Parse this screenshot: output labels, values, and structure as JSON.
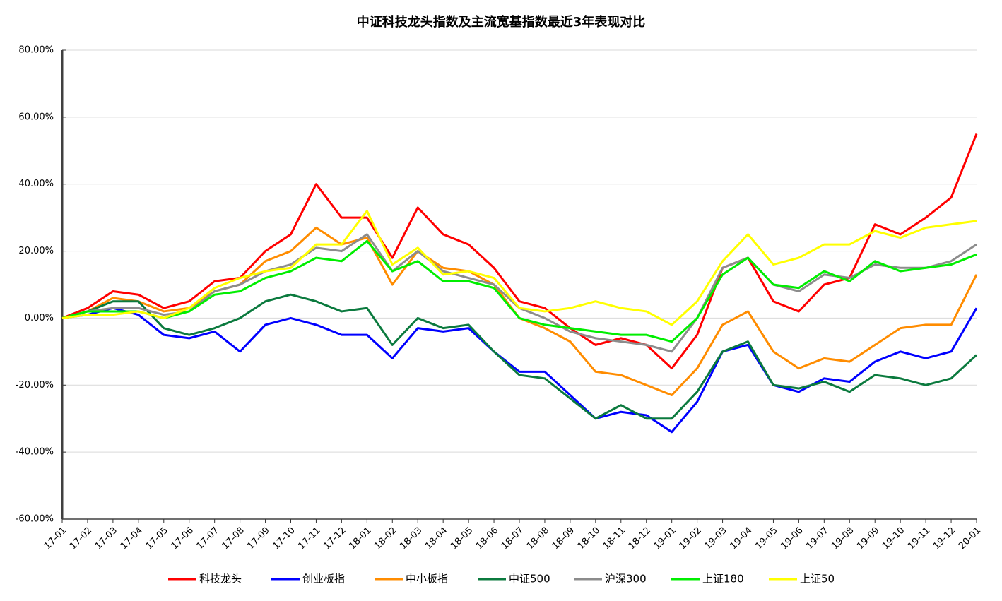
{
  "chart_data": {
    "type": "line",
    "title": "中证科技龙头指数及主流宽基指数最近3年表现对比",
    "categories": [
      "17-01",
      "17-02",
      "17-03",
      "17-04",
      "17-05",
      "17-06",
      "17-07",
      "17-08",
      "17-09",
      "17-10",
      "17-11",
      "17-12",
      "18-01",
      "18-02",
      "18-03",
      "18-04",
      "18-05",
      "18-06",
      "18-07",
      "18-08",
      "18-09",
      "18-10",
      "18-11",
      "18-12",
      "19-01",
      "19-02",
      "19-03",
      "19-04",
      "19-05",
      "19-06",
      "19-07",
      "19-08",
      "19-09",
      "19-10",
      "19-11",
      "19-12",
      "20-01"
    ],
    "series": [
      {
        "name": "科技龙头",
        "color": "#ff0000",
        "values": [
          0,
          3,
          8,
          7,
          3,
          5,
          11,
          12,
          20,
          25,
          40,
          30,
          30,
          18,
          33,
          25,
          22,
          15,
          5,
          3,
          -3,
          -8,
          -6,
          -8,
          -15,
          -5,
          15,
          18,
          5,
          2,
          10,
          12,
          28,
          25,
          30,
          36,
          55
        ]
      },
      {
        "name": "创业板指",
        "color": "#0000ff",
        "values": [
          0,
          1,
          3,
          1,
          -5,
          -6,
          -4,
          -10,
          -2,
          0,
          -2,
          -5,
          -5,
          -12,
          -3,
          -4,
          -3,
          -10,
          -16,
          -16,
          -23,
          -30,
          -28,
          -29,
          -34,
          -25,
          -10,
          -8,
          -20,
          -22,
          -18,
          -19,
          -13,
          -10,
          -12,
          -10,
          3
        ]
      },
      {
        "name": "中小板指",
        "color": "#ff8c00",
        "values": [
          0,
          2,
          6,
          5,
          2,
          3,
          8,
          10,
          17,
          20,
          27,
          22,
          24,
          10,
          20,
          15,
          14,
          10,
          0,
          -3,
          -7,
          -16,
          -17,
          -20,
          -23,
          -15,
          -2,
          2,
          -10,
          -15,
          -12,
          -13,
          -8,
          -3,
          -2,
          -2,
          13
        ]
      },
      {
        "name": "中证500",
        "color": "#0b7a3e",
        "values": [
          0,
          2,
          5,
          5,
          -3,
          -5,
          -3,
          0,
          5,
          7,
          5,
          2,
          3,
          -8,
          0,
          -3,
          -2,
          -10,
          -17,
          -18,
          -24,
          -30,
          -26,
          -30,
          -30,
          -22,
          -10,
          -7,
          -20,
          -21,
          -19,
          -22,
          -17,
          -18,
          -20,
          -18,
          -11
        ]
      },
      {
        "name": "沪深300",
        "color": "#8c8c8c",
        "values": [
          0,
          2,
          3,
          3,
          1,
          2,
          8,
          10,
          14,
          16,
          21,
          20,
          25,
          14,
          20,
          14,
          12,
          10,
          3,
          0,
          -4,
          -6,
          -7,
          -8,
          -10,
          0,
          15,
          18,
          10,
          8,
          13,
          12,
          16,
          15,
          15,
          17,
          22
        ]
      },
      {
        "name": "上证180",
        "color": "#00ee00",
        "values": [
          0,
          2,
          2,
          2,
          0,
          2,
          7,
          8,
          12,
          14,
          18,
          17,
          23,
          14,
          17,
          11,
          11,
          9,
          0,
          -2,
          -3,
          -4,
          -5,
          -5,
          -7,
          0,
          13,
          18,
          10,
          9,
          14,
          11,
          17,
          14,
          15,
          16,
          19
        ]
      },
      {
        "name": "上证50",
        "color": "#ffff00",
        "values": [
          0,
          1,
          1,
          2,
          0,
          3,
          9,
          12,
          14,
          15,
          22,
          22,
          32,
          16,
          21,
          13,
          14,
          12,
          3,
          2,
          3,
          5,
          3,
          2,
          -2,
          5,
          17,
          25,
          16,
          18,
          22,
          22,
          26,
          24,
          27,
          28,
          29
        ]
      }
    ],
    "ylim": [
      -60,
      80
    ],
    "yticks": [
      {
        "value": -60,
        "label": "-60.00%"
      },
      {
        "value": -40,
        "label": "-40.00%"
      },
      {
        "value": -20,
        "label": "-20.00%"
      },
      {
        "value": 0,
        "label": "0.00%"
      },
      {
        "value": 20,
        "label": "20.00%"
      },
      {
        "value": 40,
        "label": "40.00%"
      },
      {
        "value": 60,
        "label": "60.00%"
      },
      {
        "value": 80,
        "label": "80.00%"
      }
    ],
    "grid": true,
    "legend": "bottom"
  }
}
